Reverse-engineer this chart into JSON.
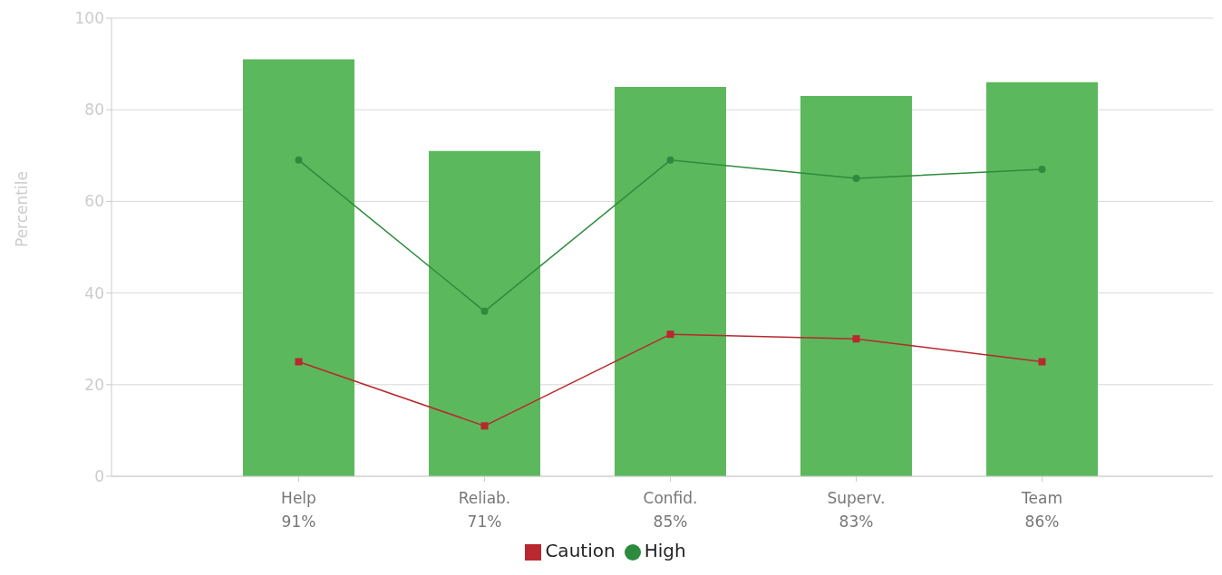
{
  "chart_data": {
    "type": "bar",
    "ylabel": "Percentile",
    "categories": [
      "Help",
      "Reliab.",
      "Confid.",
      "Superv.",
      "Team"
    ],
    "series": [
      {
        "color": "#5cb85c",
        "values": [
          91,
          71,
          85,
          83,
          86
        ],
        "value_labels": [
          "91%",
          "71%",
          "85%",
          "83%",
          "86%"
        ]
      },
      {
        "type": "line",
        "name": "Caution",
        "color": "#b8282e",
        "marker": "square",
        "values": [
          25,
          11,
          31,
          30,
          25
        ]
      },
      {
        "type": "line",
        "name": "High",
        "color": "#2e8b3e",
        "marker": "circle",
        "values": [
          69,
          36,
          69,
          65,
          67
        ]
      }
    ],
    "ylim": [
      0,
      100
    ],
    "yticks": [
      0,
      20,
      40,
      60,
      80,
      100
    ],
    "grid": "y",
    "legend": "bottom"
  }
}
